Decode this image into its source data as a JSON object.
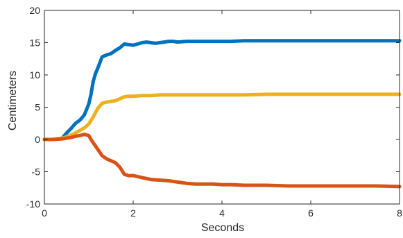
{
  "chart_data": {
    "type": "line",
    "title": "",
    "xlabel": "Seconds",
    "ylabel": "Centimeters",
    "xlim": [
      0,
      8
    ],
    "ylim": [
      -10,
      20
    ],
    "xticks": [
      0,
      2,
      4,
      6,
      8
    ],
    "yticks": [
      -10,
      -5,
      0,
      5,
      10,
      15,
      20
    ],
    "grid": false,
    "legend": "none",
    "series": [
      {
        "color": "#0072BD",
        "x": [
          0,
          0.2,
          0.4,
          0.5,
          0.6,
          0.7,
          0.8,
          0.9,
          1.0,
          1.05,
          1.1,
          1.15,
          1.2,
          1.3,
          1.4,
          1.5,
          1.6,
          1.7,
          1.8,
          1.9,
          2.0,
          2.1,
          2.2,
          2.3,
          2.4,
          2.5,
          2.6,
          2.7,
          2.8,
          2.9,
          3.0,
          3.2,
          3.4,
          3.6,
          3.8,
          4.0,
          4.2,
          4.5,
          5.0,
          5.5,
          6.0,
          6.5,
          7.0,
          7.5,
          8.0
        ],
        "y": [
          0,
          0,
          0.2,
          1.0,
          1.7,
          2.5,
          3.0,
          3.8,
          5.5,
          7.0,
          9.0,
          10.2,
          11.0,
          12.8,
          13.1,
          13.3,
          13.8,
          14.2,
          14.8,
          14.7,
          14.6,
          14.8,
          15.0,
          15.1,
          15.0,
          14.9,
          15.0,
          15.1,
          15.2,
          15.2,
          15.1,
          15.2,
          15.2,
          15.2,
          15.2,
          15.2,
          15.2,
          15.3,
          15.3,
          15.3,
          15.3,
          15.3,
          15.3,
          15.3,
          15.3
        ]
      },
      {
        "color": "#EDB120",
        "x": [
          0,
          0.2,
          0.4,
          0.5,
          0.6,
          0.7,
          0.8,
          0.9,
          1.0,
          1.1,
          1.2,
          1.3,
          1.4,
          1.5,
          1.6,
          1.7,
          1.8,
          1.9,
          2.0,
          2.2,
          2.4,
          2.6,
          2.8,
          3.0,
          3.5,
          4.0,
          4.5,
          5.0,
          5.5,
          6.0,
          6.5,
          7.0,
          7.5,
          8.0
        ],
        "y": [
          0,
          0,
          0.2,
          0.4,
          0.7,
          1.0,
          1.4,
          1.8,
          2.4,
          3.5,
          4.8,
          5.6,
          5.8,
          5.9,
          6.0,
          6.3,
          6.6,
          6.7,
          6.7,
          6.8,
          6.8,
          6.9,
          6.9,
          6.9,
          6.9,
          6.9,
          6.9,
          7.0,
          7.0,
          7.0,
          7.0,
          7.0,
          7.0,
          7.0
        ]
      },
      {
        "color": "#D95319",
        "x": [
          0,
          0.2,
          0.4,
          0.5,
          0.6,
          0.7,
          0.8,
          0.9,
          1.0,
          1.05,
          1.1,
          1.15,
          1.2,
          1.3,
          1.4,
          1.5,
          1.6,
          1.7,
          1.8,
          1.9,
          2.0,
          2.2,
          2.4,
          2.6,
          2.8,
          3.0,
          3.2,
          3.4,
          3.6,
          3.8,
          4.0,
          4.2,
          4.5,
          5.0,
          5.5,
          6.0,
          6.5,
          7.0,
          7.5,
          8.0
        ],
        "y": [
          0,
          0,
          0.1,
          0.2,
          0.3,
          0.5,
          0.6,
          0.8,
          0.6,
          0.0,
          -0.5,
          -1.0,
          -1.5,
          -2.5,
          -3.0,
          -3.3,
          -3.6,
          -4.3,
          -5.4,
          -5.6,
          -5.6,
          -5.9,
          -6.2,
          -6.3,
          -6.4,
          -6.6,
          -6.8,
          -6.9,
          -6.9,
          -6.9,
          -7.0,
          -7.0,
          -7.1,
          -7.1,
          -7.2,
          -7.2,
          -7.2,
          -7.2,
          -7.2,
          -7.3
        ]
      }
    ]
  }
}
